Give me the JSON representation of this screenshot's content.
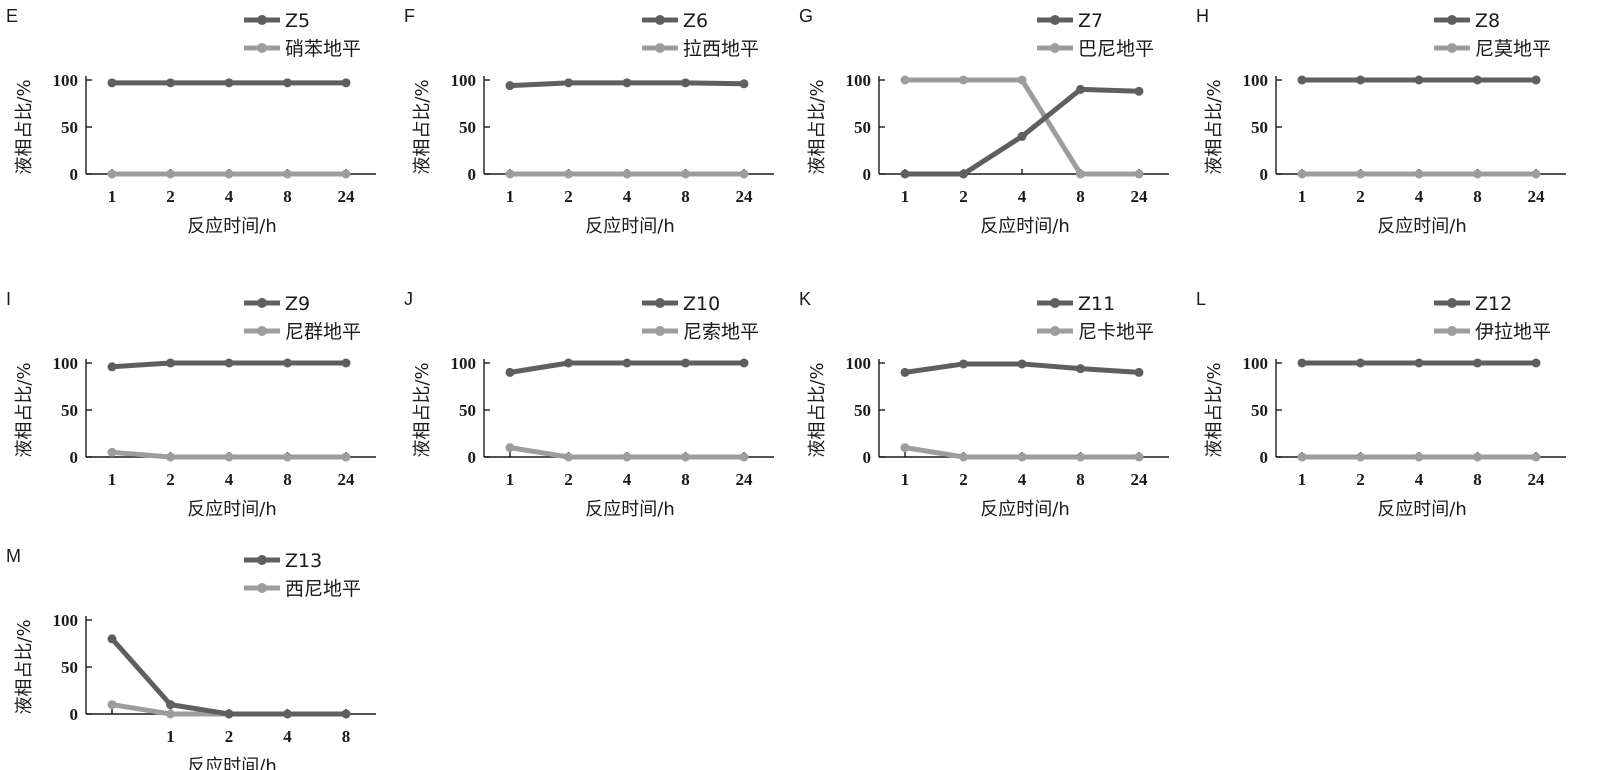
{
  "colors": {
    "series1": "#5f5f5f",
    "series2": "#9d9d9d",
    "axis": "#1a1a1a"
  },
  "chart_data": [
    {
      "panel": "E",
      "type": "line",
      "x": [
        "1",
        "2",
        "4",
        "8",
        "24"
      ],
      "xlabel": "反应时间/h",
      "ylabel": "液相占比/%",
      "ylim": [
        0,
        100
      ],
      "yticks": [
        "0",
        "50",
        "100"
      ],
      "series": [
        {
          "name": "Z5",
          "values": [
            97,
            97,
            97,
            97,
            97
          ]
        },
        {
          "name": "硝苯地平",
          "values": [
            0,
            0,
            0,
            0,
            0
          ]
        }
      ]
    },
    {
      "panel": "F",
      "type": "line",
      "x": [
        "1",
        "2",
        "4",
        "8",
        "24"
      ],
      "xlabel": "反应时间/h",
      "ylabel": "液相占比/%",
      "ylim": [
        0,
        100
      ],
      "yticks": [
        "0",
        "50",
        "100"
      ],
      "series": [
        {
          "name": "Z6",
          "values": [
            94,
            97,
            97,
            97,
            96
          ]
        },
        {
          "name": "拉西地平",
          "values": [
            0,
            0,
            0,
            0,
            0
          ]
        }
      ]
    },
    {
      "panel": "G",
      "type": "line",
      "x": [
        "1",
        "2",
        "4",
        "8",
        "24"
      ],
      "xlabel": "反应时间/h",
      "ylabel": "液相占比/%",
      "ylim": [
        0,
        100
      ],
      "yticks": [
        "0",
        "50",
        "100"
      ],
      "series": [
        {
          "name": "Z7",
          "values": [
            0,
            0,
            40,
            90,
            88
          ]
        },
        {
          "name": "巴尼地平",
          "values": [
            100,
            100,
            100,
            0,
            0
          ]
        }
      ]
    },
    {
      "panel": "H",
      "type": "line",
      "x": [
        "1",
        "2",
        "4",
        "8",
        "24"
      ],
      "xlabel": "反应时间/h",
      "ylabel": "液相占比/%",
      "ylim": [
        0,
        100
      ],
      "yticks": [
        "0",
        "50",
        "100"
      ],
      "series": [
        {
          "name": "Z8",
          "values": [
            100,
            100,
            100,
            100,
            100
          ]
        },
        {
          "name": "尼莫地平",
          "values": [
            0,
            0,
            0,
            0,
            0
          ]
        }
      ]
    },
    {
      "panel": "I",
      "type": "line",
      "x": [
        "1",
        "2",
        "4",
        "8",
        "24"
      ],
      "xlabel": "反应时间/h",
      "ylabel": "液相占比/%",
      "ylim": [
        0,
        100
      ],
      "yticks": [
        "0",
        "50",
        "100"
      ],
      "series": [
        {
          "name": "Z9",
          "values": [
            96,
            100,
            100,
            100,
            100
          ]
        },
        {
          "name": "尼群地平",
          "values": [
            5,
            0,
            0,
            0,
            0
          ]
        }
      ]
    },
    {
      "panel": "J",
      "type": "line",
      "x": [
        "1",
        "2",
        "4",
        "8",
        "24"
      ],
      "xlabel": "反应时间/h",
      "ylabel": "液相占比/%",
      "ylim": [
        0,
        100
      ],
      "yticks": [
        "0",
        "50",
        "100"
      ],
      "series": [
        {
          "name": "Z10",
          "values": [
            90,
            100,
            100,
            100,
            100
          ]
        },
        {
          "name": "尼索地平",
          "values": [
            10,
            0,
            0,
            0,
            0
          ]
        }
      ]
    },
    {
      "panel": "K",
      "type": "line",
      "x": [
        "1",
        "2",
        "4",
        "8",
        "24"
      ],
      "xlabel": "反应时间/h",
      "ylabel": "液相占比/%",
      "ylim": [
        0,
        100
      ],
      "yticks": [
        "0",
        "50",
        "100"
      ],
      "series": [
        {
          "name": "Z11",
          "values": [
            90,
            99,
            99,
            94,
            90
          ]
        },
        {
          "name": "尼卡地平",
          "values": [
            10,
            0,
            0,
            0,
            0
          ]
        }
      ]
    },
    {
      "panel": "L",
      "type": "line",
      "x": [
        "1",
        "2",
        "4",
        "8",
        "24"
      ],
      "xlabel": "反应时间/h",
      "ylabel": "液相占比/%",
      "ylim": [
        0,
        100
      ],
      "yticks": [
        "0",
        "50",
        "100"
      ],
      "series": [
        {
          "name": "Z12",
          "values": [
            100,
            100,
            100,
            100,
            100
          ]
        },
        {
          "name": "伊拉地平",
          "values": [
            0,
            0,
            0,
            0,
            0
          ]
        }
      ]
    },
    {
      "panel": "M",
      "type": "line",
      "x": [
        "",
        "1",
        "2",
        "4",
        "8"
      ],
      "xlabel": "反应时间/h",
      "ylabel": "液相占比/%",
      "ylim": [
        0,
        100
      ],
      "yticks": [
        "0",
        "50",
        "100"
      ],
      "series": [
        {
          "name": "Z13",
          "values": [
            80,
            10,
            0,
            0,
            0
          ]
        },
        {
          "name": "西尼地平",
          "values": [
            10,
            0,
            0,
            0,
            0
          ]
        }
      ]
    }
  ]
}
